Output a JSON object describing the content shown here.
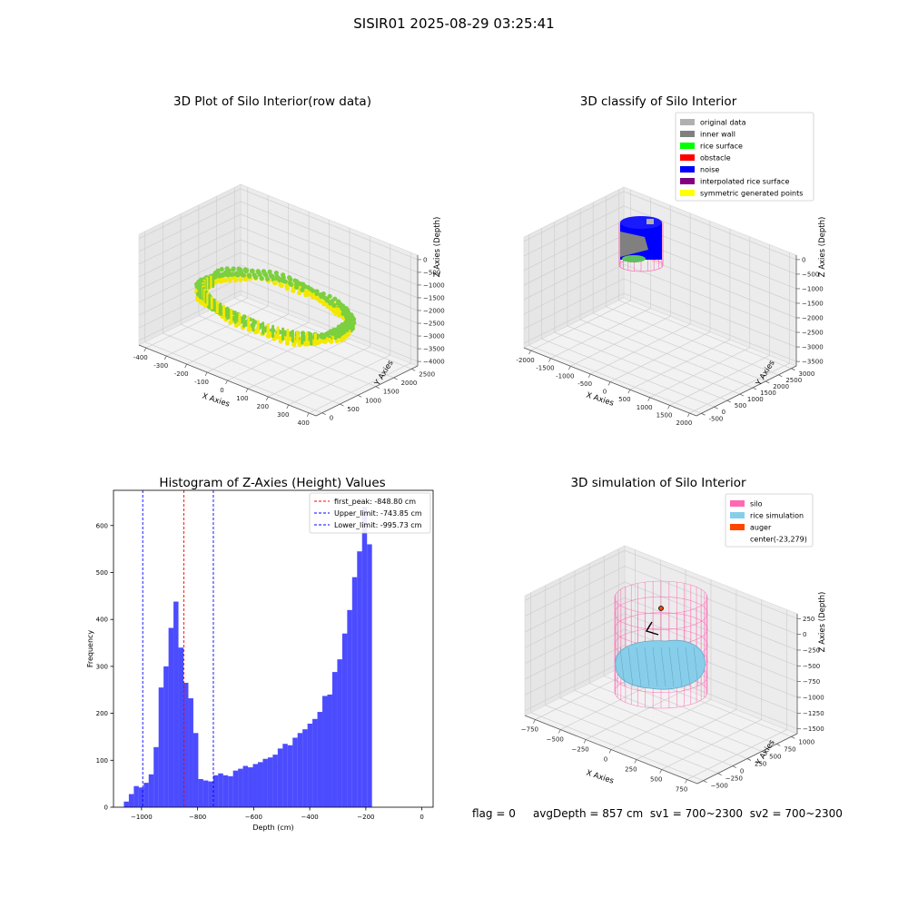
{
  "figure": {
    "suptitle": "SISIR01 2025-08-29 03:25:41",
    "status": {
      "flag": "flag = 0",
      "avg_depth": "avgDepth = 857 cm",
      "sv1": "sv1 = 700~2300",
      "sv2": "sv2 = 700~2300"
    }
  },
  "chart_data": [
    {
      "id": "raw3d",
      "type": "scatter",
      "title": "3D Plot of Silo Interior(row data)",
      "xlabel": "X Axies",
      "ylabel": "Y Axies",
      "zlabel": "Z Axies (Depth)",
      "x_ticks": [
        "-400",
        "-300",
        "-200",
        "-100",
        "0",
        "100",
        "200",
        "300",
        "400"
      ],
      "y_ticks": [
        "0",
        "500",
        "1000",
        "1500",
        "2000",
        "2500"
      ],
      "z_ticks": [
        "0",
        "−500",
        "−1000",
        "−1500",
        "−2000",
        "−2500",
        "−3000",
        "−3500",
        "−4000"
      ],
      "xlim": [
        -450,
        420
      ],
      "ylim": [
        -200,
        2700
      ],
      "zlim": [
        -4100,
        150
      ],
      "colors": {
        "low": "#7ccf3e",
        "high": "#f3e800"
      }
    },
    {
      "id": "classify3d",
      "type": "scatter",
      "title": "3D classify of Silo Interior",
      "xlabel": "X Axies",
      "ylabel": "Y Axies",
      "zlabel": "Z Axies (Depth)",
      "x_ticks": [
        "-2000",
        "-1500",
        "-1000",
        "-500",
        "0",
        "500",
        "1000",
        "1500",
        "2000"
      ],
      "y_ticks": [
        "-500",
        "0",
        "500",
        "1000",
        "1500",
        "2000",
        "2500",
        "3000"
      ],
      "z_ticks": [
        "0",
        "−500",
        "−1000",
        "−1500",
        "−2000",
        "−2500",
        "−3000",
        "−3500"
      ],
      "legend_position": "top-right",
      "legend": [
        {
          "name": "original data",
          "color": "#b0b0b0"
        },
        {
          "name": "inner wall",
          "color": "#808080"
        },
        {
          "name": "rice surface",
          "color": "#00ff00"
        },
        {
          "name": "obstacle",
          "color": "#ff0000"
        },
        {
          "name": "noise",
          "color": "#0000ff"
        },
        {
          "name": "interpolated rice surface",
          "color": "#800080"
        },
        {
          "name": "symmetric generated points",
          "color": "#ffff00"
        }
      ]
    },
    {
      "id": "histogram",
      "type": "bar",
      "title": "Histogram of Z-Axies (Height) Values",
      "xlabel": "Depth (cm)",
      "ylabel": "Frequency",
      "xlim": [
        -1100,
        40
      ],
      "ylim": [
        0,
        675
      ],
      "x_ticks": [
        -1000,
        -800,
        -600,
        -400,
        -200,
        0
      ],
      "y_ticks": [
        0,
        100,
        200,
        300,
        400,
        500,
        600
      ],
      "bin_start": -1063,
      "bin_width": 17.7,
      "values": [
        12,
        28,
        45,
        42,
        52,
        70,
        128,
        255,
        300,
        382,
        438,
        340,
        265,
        232,
        158,
        60,
        57,
        55,
        68,
        72,
        68,
        66,
        78,
        82,
        88,
        85,
        92,
        96,
        103,
        106,
        112,
        125,
        135,
        132,
        148,
        158,
        166,
        178,
        188,
        203,
        237,
        240,
        288,
        315,
        370,
        420,
        490,
        545,
        640,
        560
      ],
      "color": "#0000ff",
      "legend_position": "top-right",
      "vlines": [
        {
          "x": -848.8,
          "label": "first_peak: -848.80 cm",
          "color": "#ff0000"
        },
        {
          "x": -743.85,
          "label": "Upper_limit: -743.85 cm",
          "color": "#0000ff"
        },
        {
          "x": -995.73,
          "label": "Lower_limit: -995.73 cm",
          "color": "#0000ff"
        }
      ]
    },
    {
      "id": "simulation3d",
      "type": "scatter",
      "title": "3D simulation of Silo Interior",
      "xlabel": "X Axies",
      "ylabel": "Y Axies",
      "zlabel": "Z Axies (Depth)",
      "x_ticks": [
        "−750",
        "−500",
        "−250",
        "0",
        "250",
        "500",
        "750"
      ],
      "y_ticks": [
        "−500",
        "−250",
        "0",
        "250",
        "500",
        "750",
        "1000"
      ],
      "z_ticks": [
        "250",
        "0",
        "−250",
        "−500",
        "−750",
        "−1000",
        "−1250",
        "−1500"
      ],
      "legend_position": "top-right",
      "legend": [
        {
          "name": "silo",
          "color": "#ff69b4"
        },
        {
          "name": "rice simulation",
          "color": "#87ceeb"
        },
        {
          "name": "auger",
          "color": "#ff4500"
        },
        {
          "name": "center(-23,279)",
          "color": ""
        }
      ]
    }
  ]
}
